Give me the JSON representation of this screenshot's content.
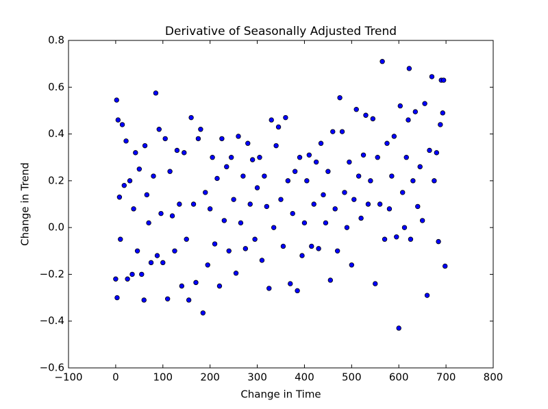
{
  "chart_data": {
    "type": "scatter",
    "title": "Derivative of Seasonally Adjusted Trend",
    "x_label": "Change in Time",
    "y_label": "Change in Trend",
    "color": "#0000ff",
    "edge_color": "#000000",
    "xlim": [
      -100,
      800
    ],
    "xticks": [
      {
        "value": -100,
        "label": "−100"
      },
      {
        "value": 0,
        "label": "0"
      },
      100,
      200,
      300,
      400,
      500,
      600,
      700,
      800
    ],
    "ylim": [
      -0.6,
      0.8
    ],
    "yticks": [
      {
        "value": -0.6,
        "label": "−0.6"
      },
      {
        "value": -0.4,
        "label": "−0.4"
      },
      {
        "value": -0.2,
        "label": "−0.2"
      },
      {
        "value": 0,
        "label": "0.0"
      },
      0.2,
      0.4,
      0.6,
      0.8
    ],
    "x": [
      0,
      2,
      3,
      5,
      8,
      10,
      14,
      18,
      22,
      25,
      30,
      35,
      38,
      42,
      46,
      50,
      55,
      60,
      62,
      66,
      70,
      75,
      80,
      85,
      88,
      92,
      96,
      100,
      105,
      110,
      115,
      120,
      125,
      130,
      135,
      140,
      145,
      150,
      155,
      160,
      165,
      170,
      175,
      180,
      185,
      190,
      195,
      200,
      205,
      210,
      215,
      220,
      225,
      230,
      235,
      240,
      245,
      250,
      255,
      260,
      265,
      270,
      275,
      280,
      285,
      290,
      295,
      300,
      305,
      310,
      315,
      320,
      325,
      330,
      335,
      340,
      345,
      350,
      355,
      360,
      365,
      370,
      375,
      380,
      385,
      390,
      395,
      400,
      405,
      410,
      415,
      420,
      425,
      430,
      435,
      440,
      445,
      450,
      455,
      460,
      465,
      470,
      475,
      480,
      485,
      490,
      495,
      500,
      505,
      510,
      515,
      520,
      525,
      530,
      535,
      540,
      545,
      550,
      555,
      560,
      565,
      570,
      575,
      580,
      585,
      590,
      595,
      600,
      603,
      608,
      612,
      616,
      620,
      622,
      625,
      630,
      635,
      640,
      645,
      650,
      655,
      660,
      665,
      670,
      675,
      680,
      684,
      688,
      690,
      693,
      695,
      698
    ],
    "values": [
      -0.22,
      0.545,
      -0.3,
      0.46,
      0.13,
      -0.05,
      0.44,
      0.18,
      0.37,
      -0.22,
      0.2,
      -0.2,
      0.08,
      0.32,
      -0.1,
      0.25,
      -0.2,
      -0.31,
      0.35,
      0.14,
      0.02,
      -0.15,
      0.22,
      0.575,
      -0.12,
      0.42,
      0.06,
      -0.15,
      0.38,
      -0.305,
      0.24,
      0.05,
      -0.1,
      0.33,
      0.1,
      -0.25,
      0.32,
      -0.05,
      -0.31,
      0.47,
      0.1,
      -0.235,
      0.38,
      0.42,
      -0.365,
      0.15,
      -0.16,
      0.08,
      0.3,
      -0.07,
      0.21,
      -0.25,
      0.38,
      0.03,
      0.26,
      -0.1,
      0.3,
      0.12,
      -0.195,
      0.39,
      0.02,
      0.22,
      -0.09,
      0.36,
      0.1,
      0.29,
      -0.05,
      0.17,
      0.3,
      -0.14,
      0.22,
      0.09,
      -0.26,
      0.46,
      0.0,
      0.35,
      0.43,
      0.12,
      -0.08,
      0.47,
      0.2,
      -0.24,
      0.06,
      0.24,
      -0.27,
      0.3,
      -0.12,
      0.02,
      0.2,
      0.31,
      -0.08,
      0.1,
      0.28,
      -0.09,
      0.36,
      0.14,
      0.02,
      0.24,
      -0.225,
      0.41,
      0.08,
      -0.1,
      0.555,
      0.41,
      0.15,
      0.0,
      0.28,
      -0.16,
      0.12,
      0.505,
      0.22,
      0.04,
      0.31,
      0.48,
      0.1,
      0.2,
      0.465,
      -0.24,
      0.3,
      0.1,
      0.71,
      -0.05,
      0.36,
      0.08,
      0.22,
      0.39,
      -0.04,
      -0.43,
      0.52,
      0.15,
      0.0,
      0.3,
      0.46,
      0.68,
      -0.05,
      0.2,
      0.495,
      0.09,
      0.26,
      0.03,
      0.53,
      -0.29,
      0.33,
      0.645,
      0.2,
      0.32,
      -0.06,
      0.44,
      0.63,
      0.49,
      0.63,
      -0.165
    ]
  }
}
